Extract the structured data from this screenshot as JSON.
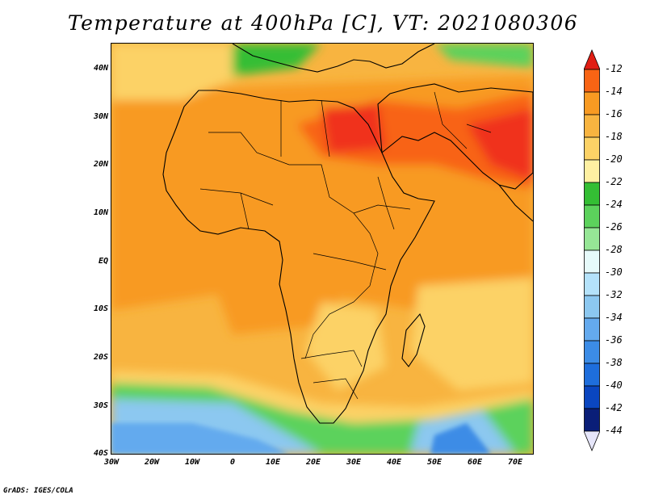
{
  "title": "Temperature at 400hPa [C], VT: 2021080306",
  "footer": "GrADS: IGES/COLA",
  "lat_labels": [
    "40N",
    "30N",
    "20N",
    "10N",
    "EQ",
    "10S",
    "20S",
    "30S",
    "40S"
  ],
  "lon_labels": [
    "30W",
    "20W",
    "10W",
    "0",
    "10E",
    "20E",
    "30E",
    "40E",
    "50E",
    "60E",
    "70E"
  ],
  "colorbar": {
    "labels": [
      "-12",
      "-14",
      "-16",
      "-18",
      "-20",
      "-22",
      "-24",
      "-26",
      "-28",
      "-30",
      "-32",
      "-34",
      "-36",
      "-38",
      "-40",
      "-42",
      "-44"
    ],
    "colors": [
      "#f0321f",
      "#f86414",
      "#f89a22",
      "#f8b440",
      "#fcd266",
      "#fef0a2",
      "#34be34",
      "#5cd25c",
      "#96e696",
      "#e6fafa",
      "#b4e2fa",
      "#8cc8f0",
      "#64aaee",
      "#3c8ce6",
      "#1e6edc",
      "#0a46c0",
      "#0a1e78"
    ],
    "over_color": "#e01e14",
    "under_color": "#e6e6fa"
  }
}
